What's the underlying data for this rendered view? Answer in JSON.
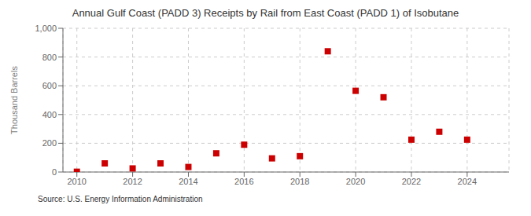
{
  "chart_data": {
    "type": "scatter",
    "title": "Annual Gulf Coast (PADD 3) Receipts by Rail from East Coast (PADD 1) of Isobutane",
    "ylabel": "Thousand Barrels",
    "annotations": [
      "Source: U.S. Energy Information Administration"
    ],
    "x": [
      2010,
      2011,
      2012,
      2013,
      2014,
      2015,
      2016,
      2017,
      2018,
      2019,
      2020,
      2021,
      2022,
      2023,
      2024
    ],
    "values": [
      2,
      60,
      25,
      60,
      35,
      130,
      190,
      95,
      110,
      840,
      565,
      520,
      225,
      280,
      225
    ],
    "color": "#cc0000",
    "marker": "square",
    "xlim": [
      2009.5,
      2025.5
    ],
    "xticks": [
      2010,
      2012,
      2014,
      2016,
      2018,
      2020,
      2022,
      2024
    ],
    "ylim": [
      0,
      1000
    ],
    "yticks": [
      0,
      200,
      400,
      600,
      800,
      {
        "value": 1000,
        "label": "1,000"
      }
    ],
    "grid": true
  }
}
